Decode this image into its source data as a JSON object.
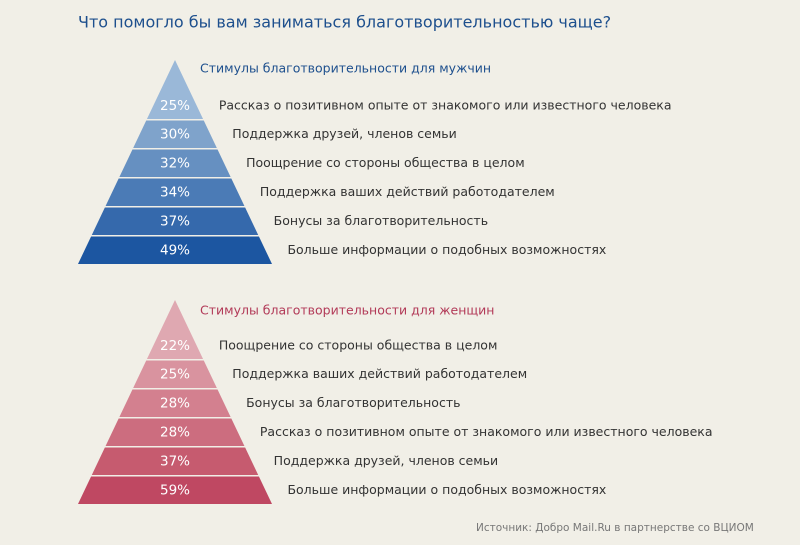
{
  "title": "Что помогло бы вам заниматься благотворительностью чаще?",
  "chart_data": [
    {
      "type": "pyramid",
      "title": "Стимулы благотворительности для мужчин",
      "categories": [
        "Рассказ о позитивном опыте от знакомого или известного человека",
        "Поддержка друзей, членов семьи",
        "Поощрение со стороны общества в целом",
        "Поддержка ваших действий работодателем",
        "Бонусы за благотворительность",
        "Больше информации о подобных возможностях"
      ],
      "values": [
        25,
        30,
        32,
        34,
        37,
        49
      ],
      "value_labels": [
        "25%",
        "30%",
        "32%",
        "34%",
        "37%",
        "49%"
      ],
      "colors": [
        "#9ab8d8",
        "#7fa3cb",
        "#6690c1",
        "#4b7bb6",
        "#3569ac",
        "#1c56a1"
      ],
      "title_color": "#1d4f8d"
    },
    {
      "type": "pyramid",
      "title": "Стимулы благотворительности для женщин",
      "categories": [
        "Поощрение со стороны общества в целом",
        "Поддержка ваших действий работодателем",
        "Бонусы за благотворительность",
        "Рассказ о позитивном опыте от знакомого или известного человека",
        "Поддержка друзей, членов семьи",
        "Больше информации о подобных возможностях"
      ],
      "values": [
        22,
        25,
        28,
        28,
        37,
        59
      ],
      "value_labels": [
        "22%",
        "25%",
        "28%",
        "28%",
        "37%",
        "59%"
      ],
      "colors": [
        "#dfa8b1",
        "#d9939f",
        "#d3808f",
        "#cc6d7f",
        "#c65b6f",
        "#bf4862"
      ],
      "title_color": "#b23a58"
    }
  ],
  "source": "Источник: Добро Mail.Ru в партнерстве со ВЦИОМ"
}
